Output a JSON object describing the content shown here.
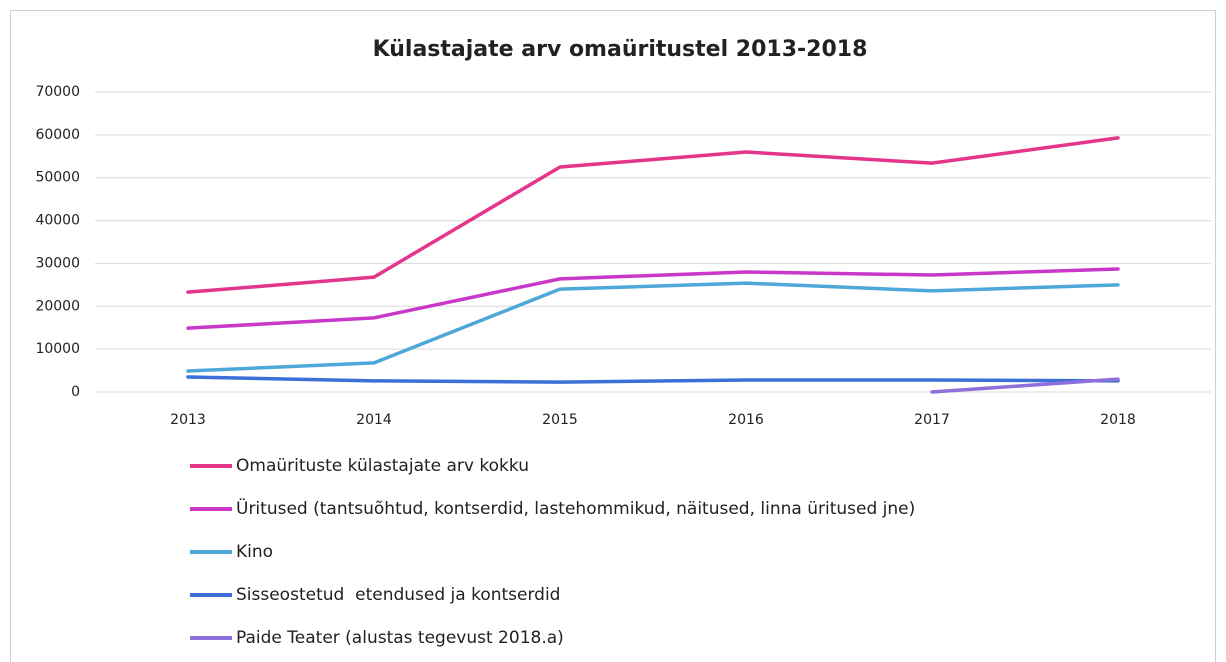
{
  "chart_data": {
    "type": "line",
    "title": "Külastajate arv omaüritustel 2013-2018",
    "categories": [
      "2013",
      "2014",
      "2015",
      "2016",
      "2017",
      "2018"
    ],
    "series": [
      {
        "name": "Omaürituste külastajate arv kokku",
        "color": "#e4358b",
        "values": [
          23300,
          26800,
          52500,
          56000,
          53400,
          59300
        ]
      },
      {
        "name": "Üritused (tantsuõhtud, kontserdid, lastehommikud, näitused, linna üritused jne)",
        "color": "#c938c9",
        "values": [
          14900,
          17300,
          26400,
          28000,
          27300,
          28700
        ]
      },
      {
        "name": "Kino",
        "color": "#4ea7d9",
        "values": [
          4900,
          6800,
          24000,
          25400,
          23600,
          25000
        ]
      },
      {
        "name": "Sisseostetud  etendused ja kontserdid",
        "color": "#3d6fd6",
        "values": [
          3500,
          2600,
          2300,
          2800,
          2800,
          2600
        ]
      },
      {
        "name": "Paide Teater (alustas tegevust 2018.a)",
        "color": "#8d70dc",
        "values": [
          null,
          null,
          null,
          null,
          0,
          3000
        ]
      }
    ],
    "ylim": [
      0,
      70000
    ],
    "yticks": [
      0,
      10000,
      20000,
      30000,
      40000,
      50000,
      60000,
      70000
    ],
    "grid": true,
    "legend": "bottom"
  }
}
